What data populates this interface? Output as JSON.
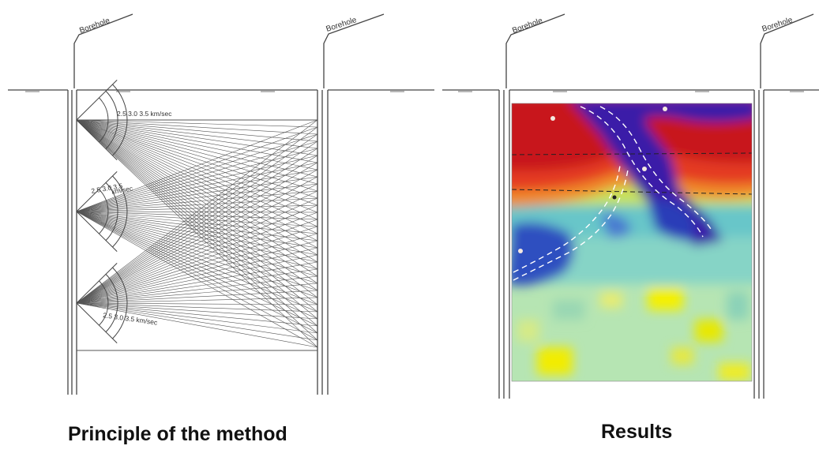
{
  "left_panel": {
    "caption": "Principle of the method",
    "borehole_label_a": "Borehole",
    "borehole_label_b": "Borehole",
    "velocity_label_top": "2.5 3.0 3.5 km/sec",
    "velocity_label_mid_a": "2.5 3.0 3.5",
    "velocity_label_mid_b": "km/sec",
    "velocity_label_bottom": "2.5 3.0 3.5 km/sec"
  },
  "right_panel": {
    "caption": "Results",
    "borehole_label_a": "Borehole",
    "borehole_label_b": "Borehole"
  }
}
